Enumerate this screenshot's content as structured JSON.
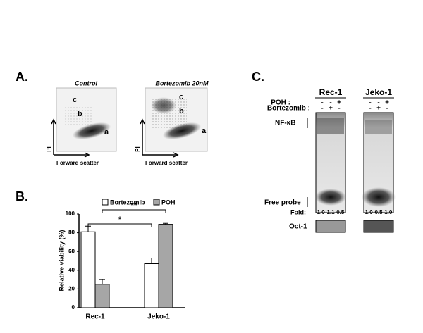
{
  "panel_a": {
    "label": "A.",
    "plots": [
      {
        "title": "Control",
        "gates": [
          "c",
          "b",
          "a"
        ],
        "y_label": "PI",
        "x_label": "Forward scatter"
      },
      {
        "title": "Bortezomib 20nM",
        "gates": [
          "c",
          "b",
          "a"
        ],
        "y_label": "PI",
        "x_label": "Forward scatter"
      }
    ]
  },
  "chart_data": {
    "type": "bar",
    "panel_label": "B.",
    "y_label": "Relative viability (%)",
    "categories": [
      "Rec-1",
      "Jeko-1"
    ],
    "series": [
      {
        "name": "Bortezomib",
        "color": "#ffffff",
        "values": [
          81,
          47
        ],
        "errors": [
          6,
          6
        ]
      },
      {
        "name": "POH",
        "color": "#a6a6a6",
        "values": [
          25,
          89
        ],
        "errors": [
          5,
          1
        ]
      }
    ],
    "annotations": [
      "*",
      "**"
    ],
    "ylim": [
      0,
      100
    ],
    "yticks": [
      0,
      20,
      40,
      60,
      80,
      100
    ]
  },
  "panel_c": {
    "label": "C.",
    "poh_label": "POH :",
    "bortezomib_label": "Bortezomib :",
    "band_labels": [
      "NF-κB",
      "Free probe"
    ],
    "fold_label": "Fold:",
    "control_label": "Oct-1",
    "blots": [
      {
        "title": "Rec-1",
        "poh": [
          "-",
          "-",
          "+"
        ],
        "bortezomib": [
          "-",
          "+",
          "-"
        ],
        "fold": [
          "1.0",
          "1.1",
          "0.5"
        ]
      },
      {
        "title": "Jeko-1",
        "poh": [
          "-",
          "-",
          "+"
        ],
        "bortezomib": [
          "-",
          "+",
          "-"
        ],
        "fold": [
          "1.0",
          "0.5",
          "1.0"
        ]
      }
    ]
  }
}
